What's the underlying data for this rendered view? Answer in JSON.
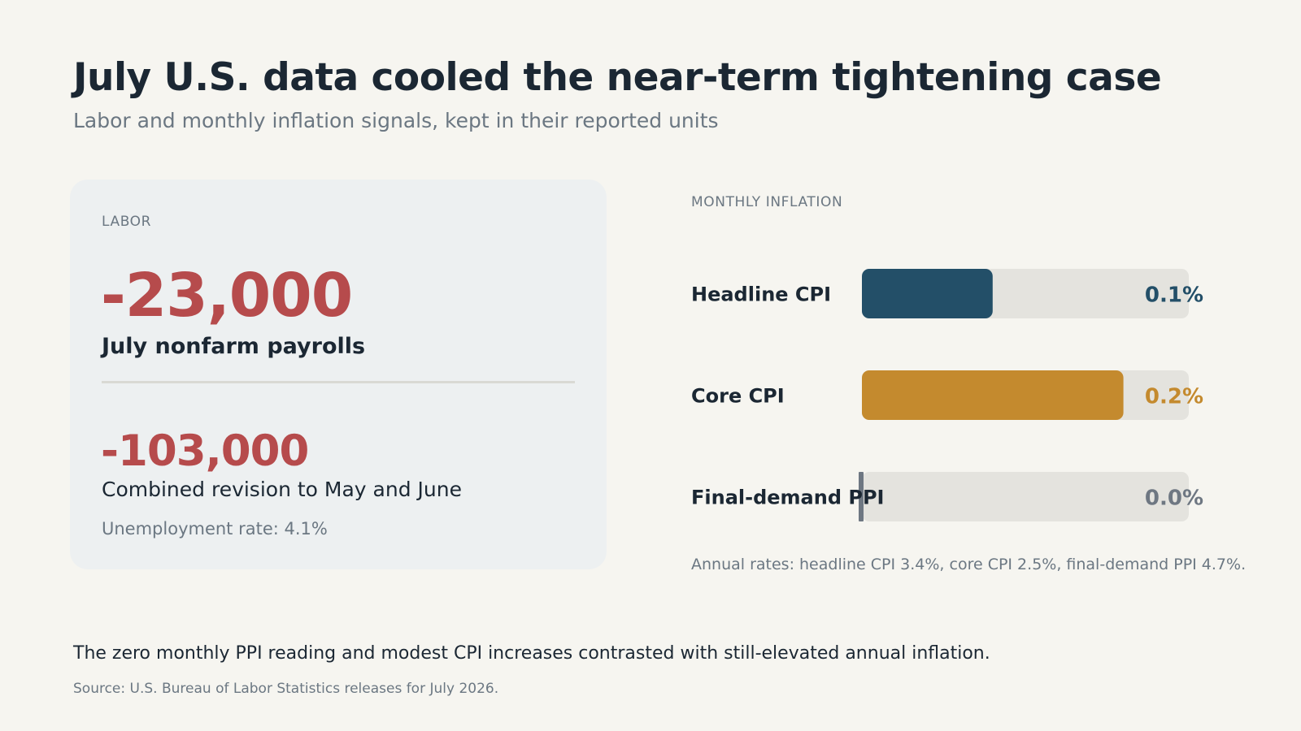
{
  "header": {
    "title": "July U.S. data cooled the near-term tightening case",
    "subtitle": "Labor and monthly inflation signals, kept in their reported units"
  },
  "labor": {
    "section_label": "LABOR",
    "payrolls_value": "-23,000",
    "payrolls_label": "July nonfarm payrolls",
    "revision_value": "-103,000",
    "revision_label": "Combined revision to May and June",
    "unemployment": "Unemployment rate: 4.1%"
  },
  "inflation": {
    "section_label": "MONTHLY INFLATION",
    "annual_note": "Annual rates: headline CPI 3.4%, core CPI 2.5%, final-demand PPI 4.7%."
  },
  "chart_data": {
    "type": "bar",
    "orientation": "horizontal",
    "categories": [
      "Headline CPI",
      "Core CPI",
      "Final-demand PPI"
    ],
    "values": [
      0.1,
      0.2,
      0.0
    ],
    "value_labels": [
      "0.1%",
      "0.2%",
      "0.0%"
    ],
    "colors": [
      "#234f68",
      "#c48a2e",
      "#6e7782"
    ],
    "xlim": [
      0,
      0.25
    ],
    "track_color": "#e4e3de",
    "grid": false
  },
  "footer": {
    "takeaway": "The zero monthly PPI reading and modest CPI increases contrasted with still-elevated annual inflation.",
    "source": "Source: U.S. Bureau of Labor Statistics releases for July 2026."
  },
  "colors": {
    "background": "#f6f5f0",
    "negative": "#b64b4c",
    "text": "#1b2733",
    "muted": "#6b7782"
  }
}
